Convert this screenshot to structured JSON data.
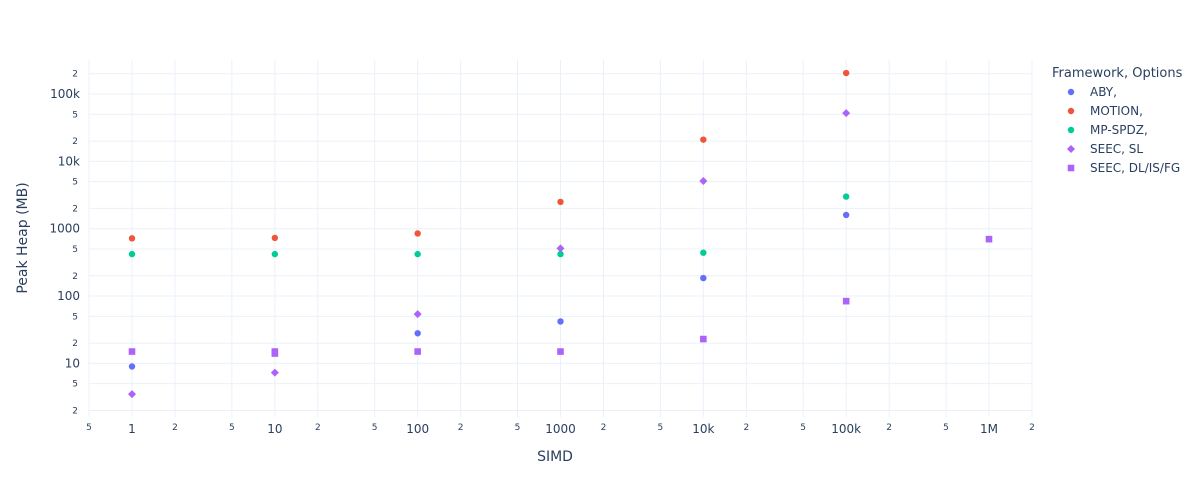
{
  "chart_data": {
    "type": "scatter",
    "title": "",
    "xlabel": "SIMD",
    "ylabel": "Peak Heap (MB)",
    "x_scale": "log",
    "y_scale": "log",
    "xlim": [
      0.5,
      2000000
    ],
    "ylim": [
      1.6,
      320000
    ],
    "grid": true,
    "legend": {
      "title": "Framework, Options",
      "position": "top-right-outside"
    },
    "x_major_ticks": [
      {
        "value": 1,
        "label": "1"
      },
      {
        "value": 10,
        "label": "10"
      },
      {
        "value": 100,
        "label": "100"
      },
      {
        "value": 1000,
        "label": "1000"
      },
      {
        "value": 10000,
        "label": "10k"
      },
      {
        "value": 100000,
        "label": "100k"
      },
      {
        "value": 1000000,
        "label": "1M"
      }
    ],
    "x_minor_ticks": [
      {
        "value": 0.5,
        "label": "5"
      },
      {
        "value": 2,
        "label": "2"
      },
      {
        "value": 5,
        "label": "5"
      },
      {
        "value": 20,
        "label": "2"
      },
      {
        "value": 50,
        "label": "5"
      },
      {
        "value": 200,
        "label": "2"
      },
      {
        "value": 500,
        "label": "5"
      },
      {
        "value": 2000,
        "label": "2"
      },
      {
        "value": 5000,
        "label": "5"
      },
      {
        "value": 20000,
        "label": "2"
      },
      {
        "value": 50000,
        "label": "5"
      },
      {
        "value": 200000,
        "label": "2"
      },
      {
        "value": 500000,
        "label": "5"
      },
      {
        "value": 2000000,
        "label": "2"
      }
    ],
    "y_major_ticks": [
      {
        "value": 10,
        "label": "10"
      },
      {
        "value": 100,
        "label": "100"
      },
      {
        "value": 1000,
        "label": "1000"
      },
      {
        "value": 10000,
        "label": "10k"
      },
      {
        "value": 100000,
        "label": "100k"
      }
    ],
    "y_minor_ticks": [
      {
        "value": 2,
        "label": "2"
      },
      {
        "value": 5,
        "label": "5"
      },
      {
        "value": 20,
        "label": "2"
      },
      {
        "value": 50,
        "label": "5"
      },
      {
        "value": 200,
        "label": "2"
      },
      {
        "value": 500,
        "label": "5"
      },
      {
        "value": 2000,
        "label": "2"
      },
      {
        "value": 5000,
        "label": "5"
      },
      {
        "value": 20000,
        "label": "2"
      },
      {
        "value": 50000,
        "label": "5"
      },
      {
        "value": 200000,
        "label": "2"
      }
    ],
    "series": [
      {
        "name": "ABY,",
        "color": "#636efa",
        "symbol": "circle",
        "x": [
          1,
          100,
          1000,
          10000,
          100000
        ],
        "y": [
          9,
          28,
          42,
          185,
          1600
        ]
      },
      {
        "name": "MOTION,",
        "color": "#ef553b",
        "symbol": "circle",
        "x": [
          1,
          10,
          100,
          1000,
          10000,
          100000
        ],
        "y": [
          720,
          730,
          850,
          2500,
          21000,
          205000
        ]
      },
      {
        "name": "MP-SPDZ,",
        "color": "#00cc96",
        "symbol": "circle",
        "x": [
          1,
          10,
          100,
          1000,
          10000,
          100000
        ],
        "y": [
          420,
          420,
          420,
          420,
          440,
          3000
        ]
      },
      {
        "name": "SEEC, SL",
        "color": "#ab63fa",
        "symbol": "diamond",
        "x": [
          1,
          10,
          100,
          1000,
          10000,
          100000
        ],
        "y": [
          3.5,
          7.3,
          54,
          510,
          5100,
          52000
        ]
      },
      {
        "name": "SEEC, DL/IS/FG",
        "color": "#ab63fa",
        "symbol": "square",
        "x": [
          1,
          10,
          10,
          100,
          1000,
          10000,
          100000,
          1000000
        ],
        "y": [
          15,
          15,
          14,
          15,
          15,
          23,
          84,
          700
        ]
      }
    ]
  }
}
